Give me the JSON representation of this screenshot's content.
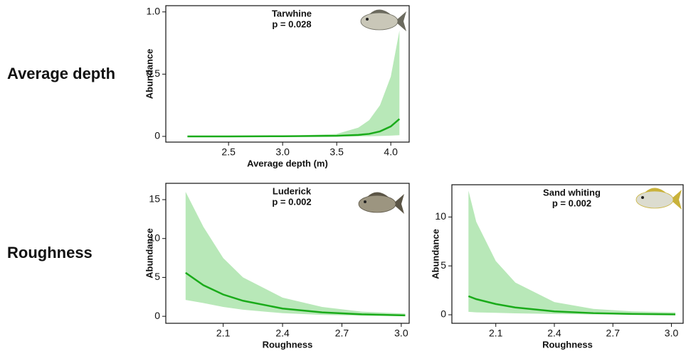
{
  "row_labels": [
    "Average depth",
    "Roughness"
  ],
  "chart_data": [
    {
      "type": "line",
      "title": "Tarwhine",
      "annotation": "p = 0.028",
      "xlabel": "Average depth (m)",
      "ylabel": "Abundance",
      "x": [
        2.12,
        2.5,
        3.0,
        3.5,
        3.7,
        3.8,
        3.9,
        4.0,
        4.08
      ],
      "series": [
        {
          "color": "#1aab1a",
          "band_color": "#b8e8b8",
          "values": [
            0,
            0,
            0.001,
            0.005,
            0.012,
            0.02,
            0.04,
            0.08,
            0.14
          ],
          "upper": [
            0,
            0,
            0.003,
            0.02,
            0.07,
            0.13,
            0.25,
            0.48,
            0.85
          ],
          "lower": [
            0,
            0,
            0,
            0,
            0,
            0.001,
            0.003,
            0.006,
            0.01
          ]
        }
      ],
      "xlim": [
        1.92,
        4.17
      ],
      "ylim": [
        -0.046,
        1.05
      ],
      "xticks": [
        2.5,
        {
          "value": 3,
          "label": "3.0"
        },
        3.5,
        {
          "value": 4,
          "label": "4.0"
        }
      ],
      "yticks": [
        0,
        0.5,
        {
          "value": 1,
          "label": "1.0"
        }
      ]
    },
    {
      "type": "line",
      "title": "Luderick",
      "annotation": "p = 0.002",
      "xlabel": "Roughness",
      "ylabel": "Abundance",
      "x": [
        1.91,
        2.0,
        2.1,
        2.2,
        2.4,
        2.6,
        2.8,
        3.02
      ],
      "series": [
        {
          "color": "#1aab1a",
          "band_color": "#b8e8b8",
          "values": [
            5.6,
            4.0,
            2.8,
            2.0,
            1.0,
            0.5,
            0.25,
            0.12
          ],
          "upper": [
            16.0,
            11.5,
            7.5,
            5.0,
            2.4,
            1.2,
            0.6,
            0.35
          ],
          "lower": [
            2.1,
            1.7,
            1.2,
            0.85,
            0.4,
            0.18,
            0.08,
            0.03
          ]
        }
      ],
      "xlim": [
        1.81,
        3.04
      ],
      "ylim": [
        -0.9,
        17.1
      ],
      "xticks": [
        2.1,
        2.4,
        2.7,
        {
          "value": 3,
          "label": "3.0"
        }
      ],
      "yticks": [
        0,
        5,
        10,
        15
      ]
    },
    {
      "type": "line",
      "title": "Sand whiting",
      "annotation": "p = 0.002",
      "xlabel": "Roughness",
      "ylabel": "Abundance",
      "x": [
        1.96,
        2.0,
        2.1,
        2.2,
        2.4,
        2.6,
        2.8,
        3.02
      ],
      "series": [
        {
          "color": "#1aab1a",
          "band_color": "#b8e8b8",
          "values": [
            1.9,
            1.6,
            1.1,
            0.75,
            0.35,
            0.17,
            0.08,
            0.04
          ],
          "upper": [
            12.7,
            9.5,
            5.5,
            3.3,
            1.3,
            0.6,
            0.35,
            0.25
          ],
          "lower": [
            0.3,
            0.25,
            0.2,
            0.15,
            0.08,
            0.04,
            0.02,
            0.01
          ]
        }
      ],
      "xlim": [
        1.875,
        3.06
      ],
      "ylim": [
        -0.87,
        13.3
      ],
      "xticks": [
        2.1,
        2.4,
        2.7,
        {
          "value": 3,
          "label": "3.0"
        }
      ],
      "yticks": [
        0,
        5,
        10
      ]
    }
  ]
}
